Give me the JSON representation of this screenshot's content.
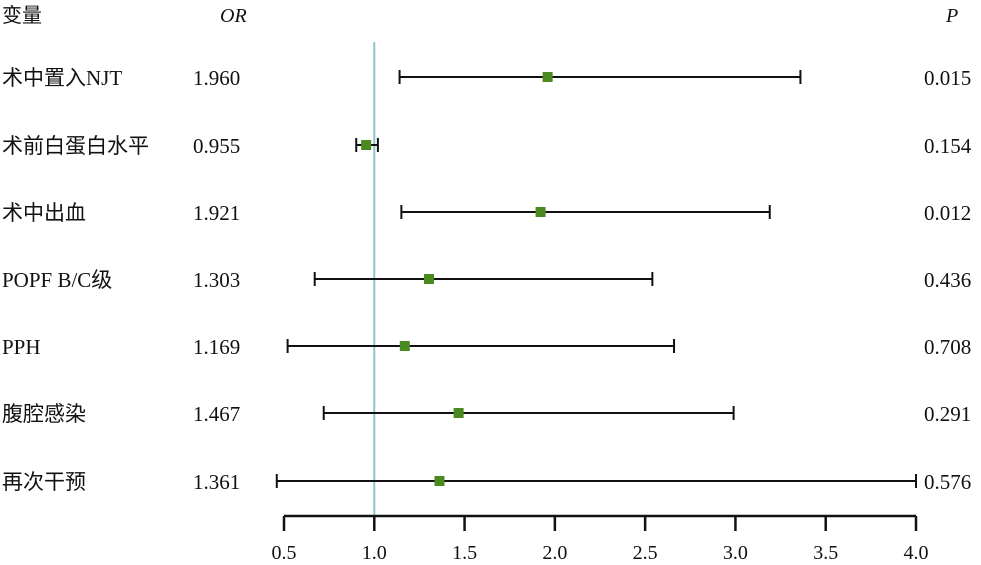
{
  "chart_data": {
    "type": "forest",
    "headers": {
      "variable": "变量",
      "or": "OR",
      "p": "P"
    },
    "rows": [
      {
        "label": "术中置入NJT",
        "or": 1.96,
        "or_text": "1.960",
        "ci_low": 1.14,
        "ci_high": 3.36,
        "p": "0.015"
      },
      {
        "label": "术前白蛋白水平",
        "or": 0.955,
        "or_text": "0.955",
        "ci_low": 0.9,
        "ci_high": 1.02,
        "p": "0.154"
      },
      {
        "label": "术中出血",
        "or": 1.921,
        "or_text": "1.921",
        "ci_low": 1.15,
        "ci_high": 3.19,
        "p": "0.012"
      },
      {
        "label": "POPF B/C级",
        "or": 1.303,
        "or_text": "1.303",
        "ci_low": 0.67,
        "ci_high": 2.54,
        "p": "0.436"
      },
      {
        "label": "PPH",
        "or": 1.169,
        "or_text": "1.169",
        "ci_low": 0.52,
        "ci_high": 2.66,
        "p": "0.708"
      },
      {
        "label": "腹腔感染",
        "or": 1.467,
        "or_text": "1.467",
        "ci_low": 0.72,
        "ci_high": 2.99,
        "p": "0.291"
      },
      {
        "label": "再次干预",
        "or": 1.361,
        "or_text": "1.361",
        "ci_low": 0.46,
        "ci_high": 4.0,
        "p": "0.576"
      }
    ],
    "xaxis": {
      "range": [
        0.5,
        4.0
      ],
      "ticks": [
        "0.5",
        "1.0",
        "1.5",
        "2.0",
        "2.5",
        "3.0",
        "3.5",
        "4.0"
      ]
    },
    "reference_line": 1.0,
    "colors": {
      "point": "#4a8a1e",
      "reference": "#8cc5c9",
      "line": "#111111"
    }
  }
}
